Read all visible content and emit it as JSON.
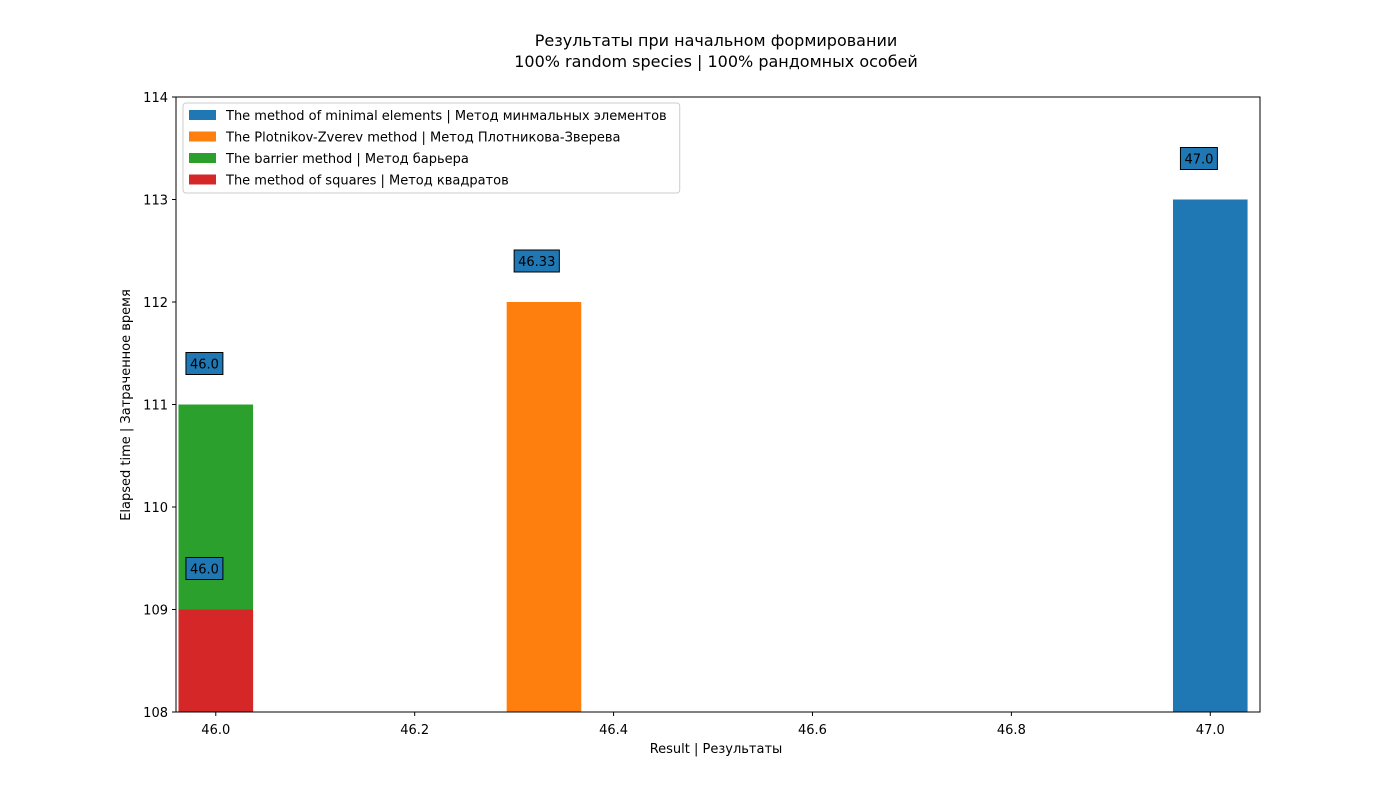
{
  "chart_data": {
    "type": "bar",
    "title": "Результаты при начальном формировании",
    "subtitle": "100% random species | 100% рандомных особей",
    "xlabel": "Result | Результаты",
    "ylabel": "Elapsed time | Затраченное время",
    "xlim": [
      45.96,
      47.05
    ],
    "ylim": [
      108,
      114
    ],
    "x_ticks": [
      "46.0",
      "46.2",
      "46.4",
      "46.6",
      "46.8",
      "47.0"
    ],
    "x_tick_values": [
      46.0,
      46.2,
      46.4,
      46.6,
      46.8,
      47.0
    ],
    "y_ticks": [
      "108",
      "109",
      "110",
      "111",
      "112",
      "113",
      "114"
    ],
    "y_tick_values": [
      108,
      109,
      110,
      111,
      112,
      113,
      114
    ],
    "bar_width": 0.075,
    "grid": false,
    "legend_position": "top-left",
    "series": [
      {
        "name": "The method of minimal elements | Метод минмальных элементов",
        "color": "#1f77b4",
        "points": [
          {
            "x": 47.0,
            "y": 113
          }
        ]
      },
      {
        "name": "The Plotnikov-Zverev method | Метод Плотникова-Зверева",
        "color": "#ff7f0e",
        "points": [
          {
            "x": 46.33,
            "y": 112
          }
        ]
      },
      {
        "name": "The barrier method | Метод барьера",
        "color": "#2ca02c",
        "points": [
          {
            "x": 46.0,
            "y": 111
          }
        ]
      },
      {
        "name": "The method of squares | Метод квадратов",
        "color": "#d62728",
        "points": [
          {
            "x": 46.0,
            "y": 109
          }
        ]
      }
    ],
    "annotations": [
      {
        "text": "47.0",
        "x": 46.97,
        "y": 113.4
      },
      {
        "text": "46.33",
        "x": 46.3,
        "y": 112.4
      },
      {
        "text": "46.0",
        "x": 45.97,
        "y": 111.4
      },
      {
        "text": "46.0",
        "x": 45.97,
        "y": 109.4
      }
    ],
    "annotation_box_color": "#1f77b4"
  }
}
